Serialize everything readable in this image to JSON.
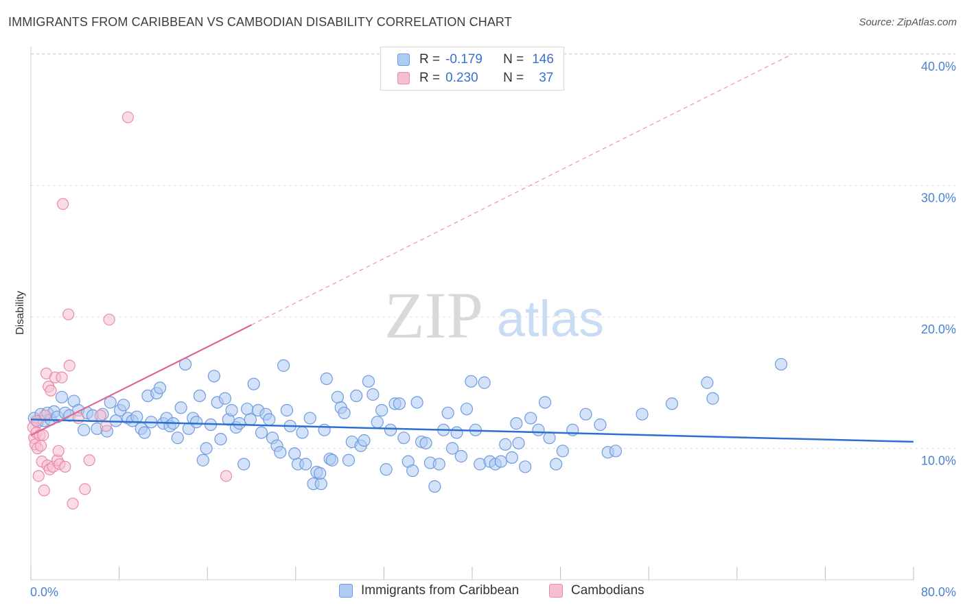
{
  "header": {
    "title": "IMMIGRANTS FROM CARIBBEAN VS CAMBODIAN DISABILITY CORRELATION CHART",
    "source": "Source: ZipAtlas.com"
  },
  "legend": {
    "rows": [
      {
        "r_label": "R =",
        "r_value": "-0.179",
        "n_label": "N =",
        "n_value": "146"
      },
      {
        "r_label": "R =",
        "r_value": "0.230",
        "n_label": "N =",
        "n_value": "37"
      }
    ]
  },
  "watermark": {
    "zip": "ZIP",
    "atlas": "atlas"
  },
  "colors": {
    "blue_fill": "#aecbf2",
    "blue_stroke": "#6e9be0",
    "blue_line": "#2b6fd0",
    "pink_fill": "#f6bfd0",
    "pink_stroke": "#e98aa8",
    "pink_line": "#e0668f",
    "tick_text": "#4a7fd4",
    "grid": "#dddddd"
  },
  "chart_data": {
    "type": "scatter",
    "title": "IMMIGRANTS FROM CARIBBEAN VS CAMBODIAN DISABILITY CORRELATION CHART",
    "xlabel": "",
    "ylabel": "Disability",
    "xlim": [
      0,
      80
    ],
    "ylim": [
      0,
      42
    ],
    "x_tick_labels": [
      "0.0%",
      "80.0%"
    ],
    "y_ticks": [
      10,
      20,
      30,
      40
    ],
    "y_tick_labels": [
      "10.0%",
      "20.0%",
      "30.0%",
      "40.0%"
    ],
    "grid": "horizontal dashed",
    "legend_placement": "bottom-center",
    "series": [
      {
        "name": "Immigrants from Caribbean",
        "color": "#aecbf2",
        "trend": {
          "x": [
            0,
            80
          ],
          "y": [
            12.2,
            10.5
          ]
        },
        "points": [
          [
            0.3,
            12.3
          ],
          [
            0.6,
            12.0
          ],
          [
            0.9,
            12.6
          ],
          [
            1.2,
            12.1
          ],
          [
            1.5,
            12.7
          ],
          [
            1.8,
            12.2
          ],
          [
            2.1,
            12.8
          ],
          [
            2.4,
            12.4
          ],
          [
            2.8,
            13.9
          ],
          [
            3.1,
            12.7
          ],
          [
            3.5,
            12.5
          ],
          [
            3.9,
            13.6
          ],
          [
            4.3,
            12.9
          ],
          [
            4.8,
            11.4
          ],
          [
            5.1,
            12.7
          ],
          [
            5.6,
            12.5
          ],
          [
            6.0,
            11.5
          ],
          [
            6.5,
            12.6
          ],
          [
            6.9,
            11.3
          ],
          [
            7.2,
            13.5
          ],
          [
            7.7,
            12.1
          ],
          [
            8.1,
            12.9
          ],
          [
            8.4,
            13.3
          ],
          [
            8.8,
            12.3
          ],
          [
            9.2,
            12.1
          ],
          [
            9.6,
            12.4
          ],
          [
            10.0,
            11.5
          ],
          [
            10.3,
            11.2
          ],
          [
            10.6,
            14.0
          ],
          [
            10.9,
            12.0
          ],
          [
            11.4,
            14.2
          ],
          [
            11.7,
            14.6
          ],
          [
            12.0,
            11.9
          ],
          [
            12.3,
            12.3
          ],
          [
            12.6,
            11.7
          ],
          [
            12.9,
            11.9
          ],
          [
            13.3,
            10.8
          ],
          [
            13.6,
            13.1
          ],
          [
            14.0,
            16.4
          ],
          [
            14.3,
            11.5
          ],
          [
            14.7,
            12.3
          ],
          [
            15.0,
            12.0
          ],
          [
            15.3,
            14.0
          ],
          [
            15.6,
            9.1
          ],
          [
            15.9,
            10.0
          ],
          [
            16.3,
            11.8
          ],
          [
            16.6,
            15.5
          ],
          [
            16.9,
            13.5
          ],
          [
            17.2,
            10.7
          ],
          [
            17.6,
            13.8
          ],
          [
            17.9,
            12.2
          ],
          [
            18.2,
            12.9
          ],
          [
            18.6,
            11.6
          ],
          [
            18.9,
            11.9
          ],
          [
            19.3,
            8.8
          ],
          [
            19.6,
            13.0
          ],
          [
            19.9,
            12.2
          ],
          [
            20.2,
            14.9
          ],
          [
            20.6,
            12.9
          ],
          [
            20.9,
            11.2
          ],
          [
            21.3,
            12.6
          ],
          [
            21.6,
            12.2
          ],
          [
            21.9,
            10.8
          ],
          [
            22.3,
            10.2
          ],
          [
            22.6,
            9.7
          ],
          [
            22.9,
            16.3
          ],
          [
            23.2,
            12.9
          ],
          [
            23.5,
            11.7
          ],
          [
            23.9,
            9.6
          ],
          [
            24.2,
            8.8
          ],
          [
            24.6,
            11.2
          ],
          [
            24.9,
            8.8
          ],
          [
            25.3,
            12.3
          ],
          [
            25.6,
            7.3
          ],
          [
            25.9,
            8.2
          ],
          [
            26.3,
            7.3
          ],
          [
            26.6,
            11.4
          ],
          [
            26.8,
            15.3
          ],
          [
            27.1,
            9.2
          ],
          [
            27.3,
            9.1
          ],
          [
            27.8,
            13.9
          ],
          [
            28.1,
            13.1
          ],
          [
            28.4,
            12.7
          ],
          [
            28.8,
            9.1
          ],
          [
            29.1,
            10.5
          ],
          [
            29.5,
            14.0
          ],
          [
            29.9,
            10.2
          ],
          [
            30.2,
            10.6
          ],
          [
            30.6,
            15.1
          ],
          [
            31.0,
            14.1
          ],
          [
            31.4,
            12.0
          ],
          [
            31.8,
            12.9
          ],
          [
            32.2,
            8.4
          ],
          [
            32.6,
            11.4
          ],
          [
            33.0,
            13.4
          ],
          [
            33.4,
            13.4
          ],
          [
            33.8,
            10.8
          ],
          [
            34.2,
            9.0
          ],
          [
            34.6,
            8.3
          ],
          [
            35.0,
            13.5
          ],
          [
            35.4,
            10.5
          ],
          [
            35.8,
            10.4
          ],
          [
            36.2,
            8.9
          ],
          [
            36.6,
            7.1
          ],
          [
            37.0,
            8.8
          ],
          [
            37.4,
            11.4
          ],
          [
            37.8,
            12.7
          ],
          [
            38.2,
            10.0
          ],
          [
            38.6,
            11.2
          ],
          [
            39.0,
            9.4
          ],
          [
            39.5,
            13.0
          ],
          [
            39.9,
            15.1
          ],
          [
            40.3,
            11.4
          ],
          [
            40.7,
            8.8
          ],
          [
            41.1,
            15.0
          ],
          [
            41.6,
            9.0
          ],
          [
            42.1,
            8.8
          ],
          [
            42.6,
            9.0
          ],
          [
            43.0,
            10.3
          ],
          [
            43.6,
            9.3
          ],
          [
            44.2,
            10.4
          ],
          [
            44.8,
            8.6
          ],
          [
            45.3,
            12.3
          ],
          [
            46.0,
            11.4
          ],
          [
            46.6,
            13.5
          ],
          [
            47.0,
            10.8
          ],
          [
            47.6,
            8.8
          ],
          [
            48.2,
            9.8
          ],
          [
            49.1,
            11.4
          ],
          [
            50.3,
            12.6
          ],
          [
            51.6,
            11.8
          ],
          [
            52.3,
            9.7
          ],
          [
            53.0,
            9.8
          ],
          [
            55.4,
            12.6
          ],
          [
            58.1,
            13.4
          ],
          [
            61.3,
            15.0
          ],
          [
            61.8,
            13.8
          ],
          [
            68.0,
            16.4
          ],
          [
            44.0,
            11.9
          ],
          [
            26.2,
            8.1
          ]
        ]
      },
      {
        "name": "Cambodians",
        "color": "#f6bfd0",
        "trend": {
          "x": [
            0,
            20
          ],
          "y": [
            11.0,
            19.4
          ],
          "dashed_extension": {
            "x": [
              20,
              69
            ],
            "y": [
              19.4,
              40.0
            ]
          }
        },
        "points": [
          [
            0.2,
            11.6
          ],
          [
            0.3,
            10.8
          ],
          [
            0.4,
            10.3
          ],
          [
            0.5,
            11.2
          ],
          [
            0.6,
            10.0
          ],
          [
            0.7,
            7.9
          ],
          [
            0.8,
            11.0
          ],
          [
            0.9,
            10.2
          ],
          [
            1.0,
            9.0
          ],
          [
            1.1,
            11.0
          ],
          [
            1.2,
            6.8
          ],
          [
            1.4,
            15.7
          ],
          [
            1.5,
            8.7
          ],
          [
            1.6,
            14.7
          ],
          [
            1.7,
            8.4
          ],
          [
            1.8,
            14.4
          ],
          [
            2.0,
            8.6
          ],
          [
            2.2,
            15.4
          ],
          [
            2.4,
            9.1
          ],
          [
            2.5,
            9.8
          ],
          [
            2.6,
            8.8
          ],
          [
            2.8,
            15.4
          ],
          [
            2.9,
            28.6
          ],
          [
            3.1,
            8.6
          ],
          [
            3.4,
            20.2
          ],
          [
            3.5,
            16.3
          ],
          [
            3.8,
            5.8
          ],
          [
            4.3,
            12.3
          ],
          [
            4.9,
            6.9
          ],
          [
            5.3,
            9.1
          ],
          [
            6.3,
            12.5
          ],
          [
            6.8,
            11.7
          ],
          [
            7.1,
            19.8
          ],
          [
            8.8,
            35.2
          ],
          [
            17.7,
            7.9
          ],
          [
            0.5,
            12.1
          ],
          [
            1.3,
            12.5
          ]
        ]
      }
    ]
  }
}
